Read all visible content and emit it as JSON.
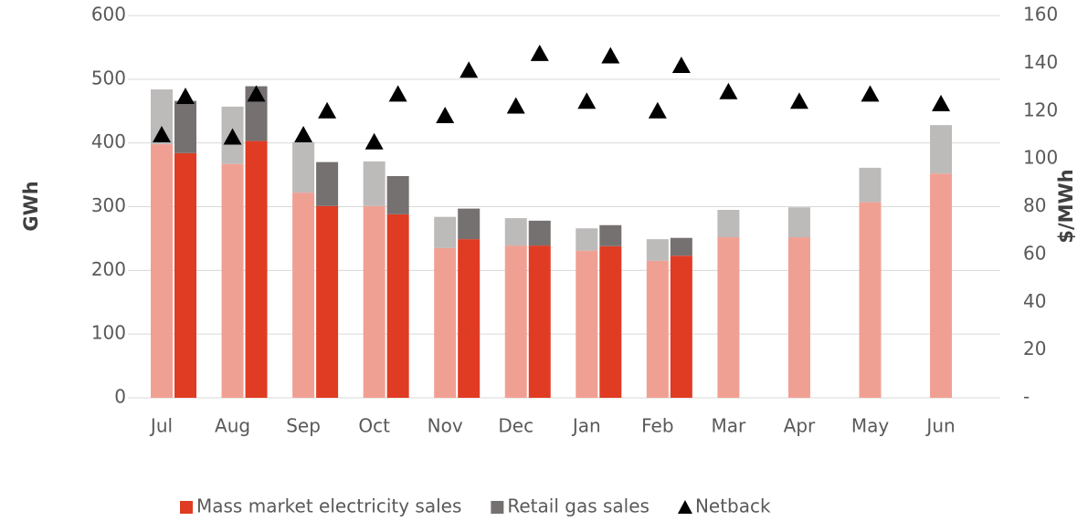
{
  "chart_data": {
    "type": "bar",
    "categories": [
      "Jul",
      "Aug",
      "Sep",
      "Oct",
      "Nov",
      "Dec",
      "Jan",
      "Feb",
      "Mar",
      "Apr",
      "May",
      "Jun"
    ],
    "y_label": "GWh",
    "y2_label": "$/MWh",
    "ylim": [
      0,
      600
    ],
    "yticks": [
      0,
      100,
      200,
      300,
      400,
      500,
      600
    ],
    "y2lim": [
      0,
      160
    ],
    "y2ticks": [
      {
        "value": 0,
        "label": "-"
      },
      20,
      40,
      60,
      80,
      100,
      120,
      140,
      160
    ],
    "grid": true,
    "legend": "bottom",
    "series": [
      {
        "color": "#f0a093",
        "stack": 0,
        "values": [
          398,
          367,
          322,
          301,
          235,
          239,
          231,
          215,
          252,
          252,
          307,
          352
        ]
      },
      {
        "color": "#bdbaba",
        "stack": 0,
        "values": [
          86,
          90,
          79,
          70,
          49,
          43,
          35,
          34,
          43,
          47,
          54,
          76
        ]
      },
      {
        "name": "Mass market electricity sales",
        "color": "#e03c24",
        "stack": 1,
        "values": [
          384,
          403,
          301,
          288,
          249,
          239,
          238,
          223,
          null,
          null,
          null,
          null
        ]
      },
      {
        "name": "Retail gas sales",
        "color": "#767171",
        "stack": 1,
        "values": [
          82,
          86,
          69,
          60,
          48,
          39,
          33,
          28,
          null,
          null,
          null,
          null
        ]
      },
      {
        "color": "#000000",
        "stack": 0,
        "axis": "y2",
        "marker": "triangle",
        "values": [
          110,
          109,
          110,
          107,
          118,
          122,
          124,
          120,
          128,
          124,
          127,
          123
        ]
      },
      {
        "name": "Netback",
        "color": "#000000",
        "stack": 1,
        "axis": "y2",
        "marker": "triangle",
        "values": [
          126,
          127,
          120,
          127,
          137,
          144,
          143,
          139,
          null,
          null,
          null,
          null
        ]
      }
    ]
  }
}
